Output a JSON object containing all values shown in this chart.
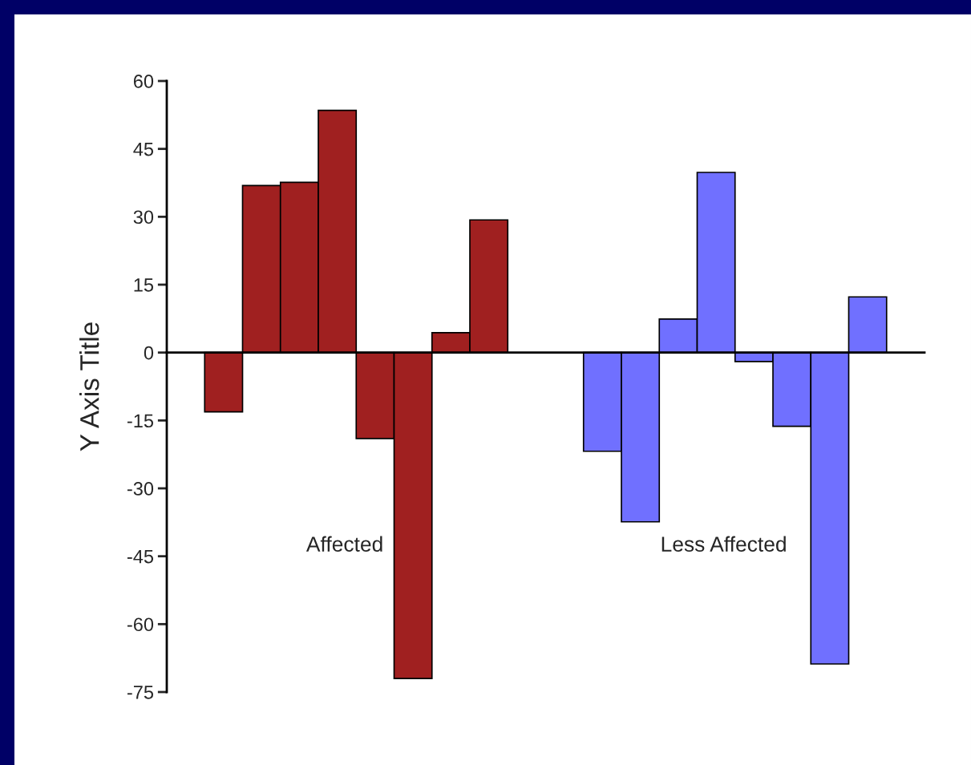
{
  "chart_data": {
    "type": "bar",
    "ylabel": "Y Axis Title",
    "categories": [
      null,
      null,
      null,
      null,
      null,
      null,
      null,
      null,
      null,
      null,
      null,
      null,
      null,
      null,
      null,
      null,
      null,
      null,
      null,
      null
    ],
    "values": [
      null,
      -13.1,
      36.9,
      37.6,
      53.5,
      -19.0,
      -72.0,
      4.4,
      29.3,
      null,
      null,
      -21.8,
      -37.4,
      7.4,
      39.8,
      -2.0,
      -16.3,
      -68.8,
      12.3,
      null
    ],
    "colors": [
      "#a02020",
      "#a02020",
      "#a02020",
      "#a02020",
      "#a02020",
      "#a02020",
      "#a02020",
      "#a02020",
      "#a02020",
      "#a02020",
      "#7070ff",
      "#7070ff",
      "#7070ff",
      "#7070ff",
      "#7070ff",
      "#7070ff",
      "#7070ff",
      "#7070ff",
      "#7070ff",
      "#7070ff"
    ],
    "ylim": [
      -75,
      60
    ],
    "yticks": [
      -75,
      -60,
      -45,
      -30,
      -15,
      0,
      15,
      30,
      45,
      60
    ],
    "annotations": [
      "Affected",
      "Less Affected"
    ],
    "tick_labels": "y",
    "legend": false
  }
}
